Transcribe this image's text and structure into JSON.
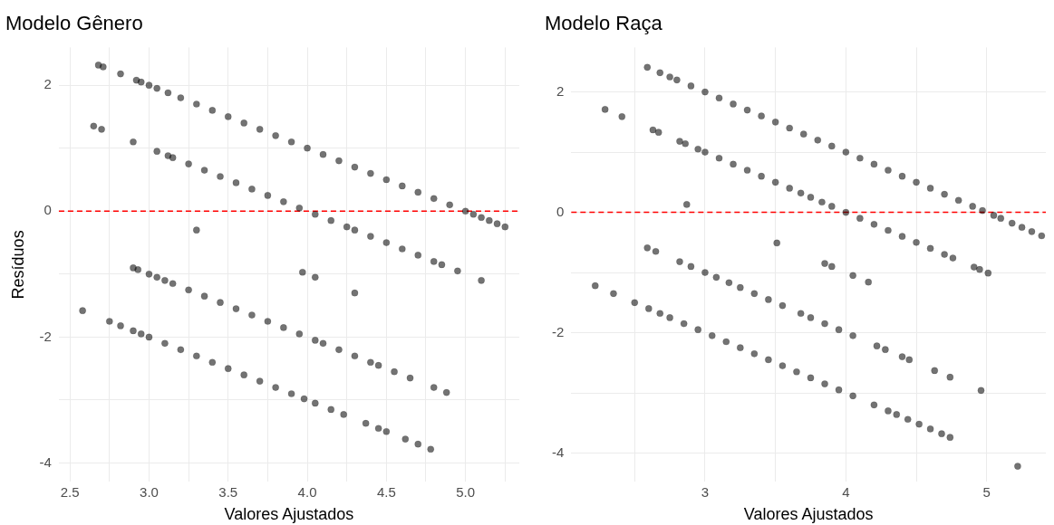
{
  "chart_data": [
    {
      "type": "scatter",
      "title": "Modelo Gênero",
      "xlabel": "Valores Ajustados",
      "ylabel": "Resíduos",
      "xlim": [
        2.43,
        5.34
      ],
      "ylim": [
        -4.3,
        2.6
      ],
      "xticks": [
        2.5,
        {
          "value": 2.75,
          "label": null
        },
        {
          "value": 3,
          "label": "3.0"
        },
        {
          "value": 3.25,
          "label": null
        },
        3.5,
        {
          "value": 3.75,
          "label": null
        },
        {
          "value": 4,
          "label": "4.0"
        },
        {
          "value": 4.25,
          "label": null
        },
        4.5,
        {
          "value": 4.75,
          "label": null
        },
        {
          "value": 5,
          "label": "5.0"
        },
        {
          "value": 5.25,
          "label": null
        }
      ],
      "yticks": [
        -4,
        {
          "value": -3,
          "label": null
        },
        -2,
        {
          "value": -1,
          "label": null
        },
        0,
        {
          "value": 1,
          "label": null
        },
        2
      ],
      "grid": true,
      "legend": false,
      "marker": "circle",
      "ref_lines": [
        {
          "axis": "y",
          "value": 0,
          "label": null,
          "color": "#ff0000",
          "line_style": "dashed"
        }
      ],
      "series": [
        {
          "color": "#000000",
          "x": [
            2.68,
            2.71,
            2.82,
            2.92,
            2.95,
            3.0,
            3.05,
            3.12,
            3.2,
            3.3,
            3.4,
            3.5,
            3.6,
            3.7,
            3.8,
            3.9,
            4.0,
            4.1,
            4.2,
            4.3,
            4.4,
            4.5,
            4.6,
            4.7,
            4.8,
            4.9,
            5.0,
            5.05,
            5.1,
            5.15,
            5.2,
            5.25,
            3.05,
            3.12,
            3.15,
            3.25,
            3.35,
            3.45,
            3.55,
            3.65,
            3.75,
            3.85,
            3.95,
            4.05,
            4.15,
            4.25,
            4.3,
            4.4,
            4.5,
            4.6,
            4.7,
            4.8,
            4.85,
            4.95,
            5.1,
            2.65,
            2.7,
            2.9,
            3.3,
            3.97,
            4.05,
            4.3,
            2.9,
            2.93,
            3.0,
            3.05,
            3.1,
            3.15,
            3.25,
            3.35,
            3.45,
            3.55,
            3.65,
            3.75,
            3.85,
            3.95,
            4.05,
            4.1,
            4.2,
            4.3,
            4.4,
            4.45,
            4.55,
            4.65,
            4.8,
            4.88,
            2.58,
            2.75,
            2.82,
            2.9,
            2.95,
            3.0,
            3.1,
            3.2,
            3.3,
            3.4,
            3.5,
            3.6,
            3.7,
            3.8,
            3.9,
            3.98,
            4.05,
            4.15,
            4.23,
            4.37,
            4.45,
            4.5,
            4.62,
            4.7,
            4.78
          ],
          "values": [
            2.32,
            2.29,
            2.18,
            2.08,
            2.05,
            2.0,
            1.95,
            1.88,
            1.8,
            1.7,
            1.6,
            1.5,
            1.4,
            1.3,
            1.2,
            1.1,
            1.0,
            0.9,
            0.8,
            0.7,
            0.6,
            0.5,
            0.4,
            0.3,
            0.2,
            0.1,
            0.0,
            -0.05,
            -0.1,
            -0.15,
            -0.2,
            -0.25,
            0.95,
            0.88,
            0.85,
            0.75,
            0.65,
            0.55,
            0.45,
            0.35,
            0.25,
            0.15,
            0.05,
            -0.05,
            -0.15,
            -0.25,
            -0.3,
            -0.4,
            -0.5,
            -0.6,
            -0.7,
            -0.8,
            -0.85,
            -0.95,
            -1.1,
            1.35,
            1.3,
            1.1,
            -0.3,
            -0.97,
            -1.05,
            -1.3,
            -0.9,
            -0.93,
            -1.0,
            -1.05,
            -1.1,
            -1.15,
            -1.25,
            -1.35,
            -1.45,
            -1.55,
            -1.65,
            -1.75,
            -1.85,
            -1.95,
            -2.05,
            -2.1,
            -2.2,
            -2.3,
            -2.4,
            -2.45,
            -2.55,
            -2.65,
            -2.8,
            -2.88,
            -1.58,
            -1.75,
            -1.82,
            -1.9,
            -1.95,
            -2.0,
            -2.1,
            -2.2,
            -2.3,
            -2.4,
            -2.5,
            -2.6,
            -2.7,
            -2.8,
            -2.9,
            -2.98,
            -3.05,
            -3.15,
            -3.23,
            -3.37,
            -3.45,
            -3.5,
            -3.62,
            -3.7,
            -3.78
          ]
        }
      ]
    },
    {
      "type": "scatter",
      "title": "Modelo Raça",
      "xlabel": "Valores Ajustados",
      "xlim": [
        2.05,
        5.42
      ],
      "ylim": [
        -4.48,
        2.74
      ],
      "xticks": [
        {
          "value": 2.5,
          "label": null
        },
        3,
        {
          "value": 3.5,
          "label": null
        },
        4,
        {
          "value": 4.5,
          "label": null
        },
        5
      ],
      "yticks": [
        -4,
        {
          "value": -3,
          "label": null
        },
        -2,
        {
          "value": -1,
          "label": null
        },
        0,
        {
          "value": 1,
          "label": null
        },
        2
      ],
      "grid": true,
      "legend": false,
      "marker": "circle",
      "ref_lines": [
        {
          "axis": "y",
          "value": 0,
          "label": null,
          "color": "#ff0000",
          "line_style": "dashed"
        }
      ],
      "series": [
        {
          "color": "#000000",
          "x": [
            2.59,
            2.68,
            2.75,
            2.8,
            2.9,
            3.0,
            3.1,
            3.2,
            3.3,
            3.4,
            3.5,
            3.6,
            3.7,
            3.8,
            3.9,
            4.0,
            4.1,
            4.2,
            4.3,
            4.4,
            4.5,
            4.6,
            4.7,
            4.8,
            4.9,
            4.97,
            5.05,
            5.1,
            5.18,
            5.25,
            5.32,
            5.39,
            2.29,
            2.41,
            2.63,
            2.67,
            2.82,
            2.86,
            2.95,
            3.0,
            3.1,
            3.2,
            3.3,
            3.4,
            3.5,
            3.6,
            3.68,
            3.75,
            3.83,
            3.9,
            4.0,
            4.1,
            4.2,
            4.3,
            4.4,
            4.5,
            4.6,
            4.7,
            4.76,
            4.91,
            4.95,
            5.01,
            2.87,
            3.51,
            3.85,
            3.9,
            4.05,
            4.16,
            2.59,
            2.65,
            2.82,
            2.9,
            3.0,
            3.08,
            3.17,
            3.25,
            3.35,
            3.45,
            3.55,
            3.68,
            3.75,
            3.85,
            3.95,
            4.05,
            4.22,
            4.28,
            4.4,
            4.45,
            4.63,
            4.74,
            4.96,
            2.22,
            2.35,
            2.5,
            2.6,
            2.68,
            2.75,
            2.85,
            2.95,
            3.05,
            3.15,
            3.25,
            3.35,
            3.45,
            3.55,
            3.65,
            3.75,
            3.85,
            3.95,
            4.05,
            4.2,
            4.3,
            4.36,
            4.44,
            4.52,
            4.6,
            4.68,
            4.74,
            5.22
          ],
          "values": [
            2.41,
            2.32,
            2.25,
            2.2,
            2.1,
            2.0,
            1.9,
            1.8,
            1.7,
            1.6,
            1.5,
            1.4,
            1.3,
            1.2,
            1.1,
            1.0,
            0.9,
            0.8,
            0.7,
            0.6,
            0.5,
            0.4,
            0.3,
            0.2,
            0.1,
            0.03,
            -0.05,
            -0.1,
            -0.18,
            -0.25,
            -0.32,
            -0.39,
            1.71,
            1.59,
            1.37,
            1.33,
            1.18,
            1.14,
            1.05,
            1.0,
            0.9,
            0.8,
            0.7,
            0.6,
            0.5,
            0.4,
            0.32,
            0.25,
            0.17,
            0.1,
            0.0,
            -0.1,
            -0.2,
            -0.3,
            -0.4,
            -0.5,
            -0.6,
            -0.7,
            -0.76,
            -0.91,
            -0.95,
            -1.01,
            0.13,
            -0.51,
            -0.85,
            -0.9,
            -1.05,
            -1.16,
            -0.59,
            -0.65,
            -0.82,
            -0.9,
            -1.0,
            -1.08,
            -1.17,
            -1.25,
            -1.35,
            -1.45,
            -1.55,
            -1.68,
            -1.75,
            -1.85,
            -1.95,
            -2.05,
            -2.22,
            -2.28,
            -2.4,
            -2.45,
            -2.63,
            -2.74,
            -2.96,
            -1.22,
            -1.35,
            -1.5,
            -1.6,
            -1.68,
            -1.75,
            -1.85,
            -1.95,
            -2.05,
            -2.15,
            -2.25,
            -2.35,
            -2.45,
            -2.55,
            -2.65,
            -2.75,
            -2.85,
            -2.95,
            -3.05,
            -3.2,
            -3.3,
            -3.36,
            -3.44,
            -3.52,
            -3.6,
            -3.68,
            -3.74,
            -4.22
          ]
        }
      ]
    }
  ]
}
